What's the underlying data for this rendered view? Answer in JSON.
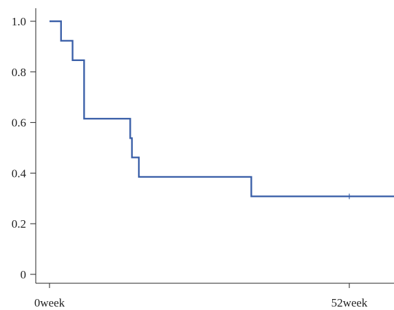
{
  "chart_data": {
    "type": "line",
    "step": "post",
    "title": "",
    "xlabel": "",
    "ylabel": "",
    "x_tick_values": [
      0,
      52
    ],
    "x_tick_labels": [
      "0week",
      "52week"
    ],
    "y_tick_values": [
      0,
      0.2,
      0.4,
      0.6,
      0.8,
      1.0
    ],
    "y_tick_labels": [
      "0",
      "0.2",
      "0.4",
      "0.6",
      "0.8",
      "1.0"
    ],
    "xlim": [
      0,
      60
    ],
    "ylim": [
      0,
      1.0
    ],
    "grid": false,
    "colors": {
      "line": "#3a5fa8",
      "axis": "#222222"
    },
    "series": [
      {
        "x": [
          0,
          2,
          4,
          6,
          14,
          14.3,
          14.6,
          15.5,
          35,
          60
        ],
        "y": [
          1.0,
          0.923,
          0.846,
          0.615,
          0.538,
          0.462,
          0.462,
          0.385,
          0.308,
          0.308
        ],
        "censored": [
          {
            "x": 52,
            "y": 0.308
          }
        ]
      }
    ]
  }
}
